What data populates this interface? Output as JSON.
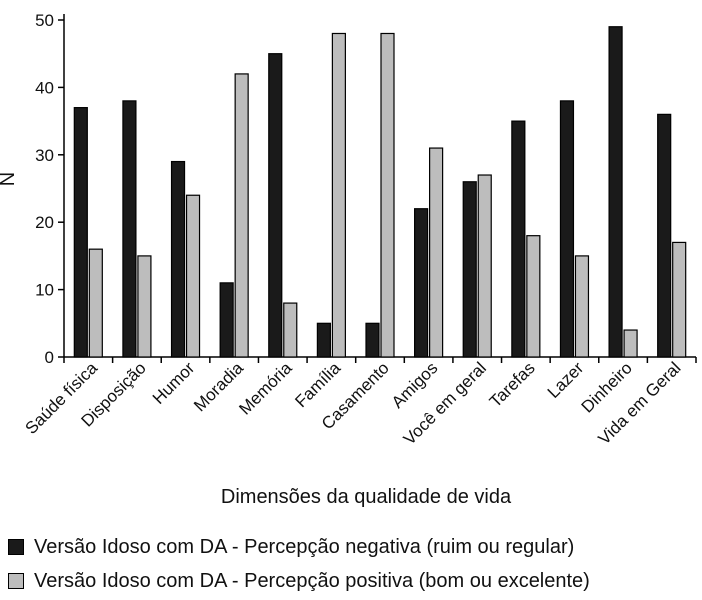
{
  "chart_data": {
    "type": "bar",
    "categories": [
      "Saúde física",
      "Disposição",
      "Humor",
      "Moradia",
      "Memória",
      "Família",
      "Casamento",
      "Amigos",
      "Você em geral",
      "Tarefas",
      "Lazer",
      "Dinheiro",
      "Vida em Geral"
    ],
    "series": [
      {
        "name": "Versão Idoso com DA - Percepção negativa (ruim ou regular)",
        "color": "#1a1a1a",
        "values": [
          37,
          38,
          29,
          11,
          45,
          5,
          5,
          22,
          26,
          35,
          38,
          49,
          36
        ]
      },
      {
        "name": "Versão Idoso com DA - Percepção positiva (bom ou excelente)",
        "color": "#bdbdbd",
        "values": [
          16,
          15,
          24,
          42,
          8,
          48,
          48,
          31,
          27,
          18,
          15,
          4,
          17
        ]
      }
    ],
    "xlabel": "Dimensões da qualidade de vida",
    "ylabel": "N",
    "ylim": [
      0,
      50
    ],
    "yticks": [
      0,
      10,
      20,
      30,
      40,
      50
    ],
    "grid": false,
    "legend_position": "bottom"
  }
}
